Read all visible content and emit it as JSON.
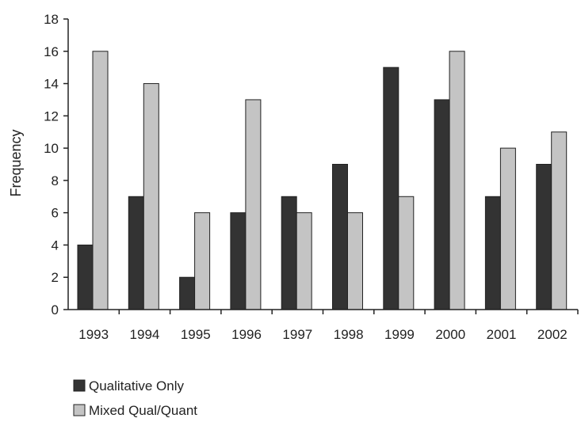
{
  "chart_data": {
    "type": "bar",
    "title": "",
    "xlabel": "",
    "ylabel": "Frequency",
    "ylim": [
      0,
      18
    ],
    "yticks": [
      0,
      2,
      4,
      6,
      8,
      10,
      12,
      14,
      16,
      18
    ],
    "grid": false,
    "legend_position": "bottom-left",
    "categories": [
      "1993",
      "1994",
      "1995",
      "1996",
      "1997",
      "1998",
      "1999",
      "2000",
      "2001",
      "2002"
    ],
    "series": [
      {
        "name": "Qualitative Only",
        "color": "#333333",
        "values": [
          4,
          7,
          2,
          6,
          7,
          9,
          15,
          13,
          7,
          9
        ]
      },
      {
        "name": "Mixed Qual/Quant",
        "color": "#c4c4c4",
        "values": [
          16,
          14,
          6,
          13,
          6,
          6,
          7,
          16,
          10,
          11
        ]
      }
    ]
  }
}
